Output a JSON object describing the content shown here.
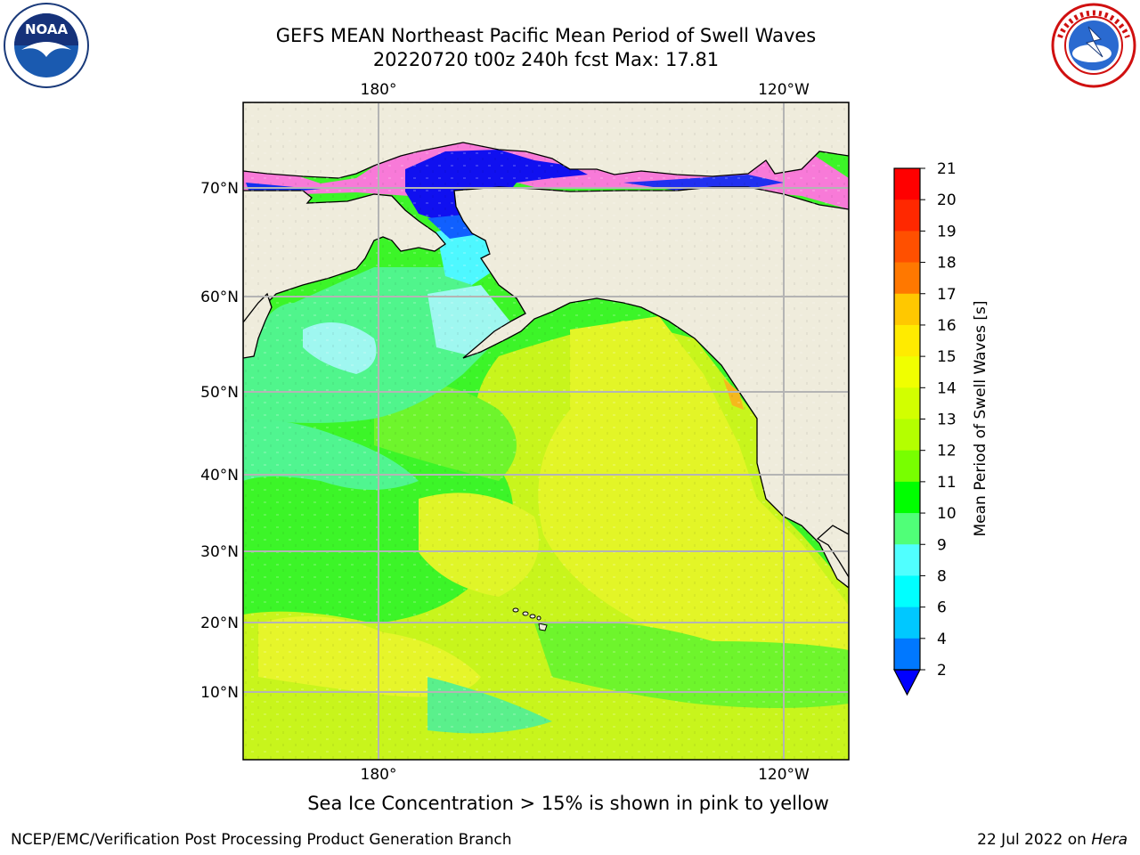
{
  "title_line1": "GEFS MEAN Northeast Pacific Mean Period of Swell Waves",
  "title_line2": "20220720 t00z 240h fcst   Max: 17.81",
  "map": {
    "lon_ticks_top": [
      "180°",
      "120°W"
    ],
    "lon_ticks_bottom": [
      "180°",
      "120°W"
    ],
    "lat_ticks": [
      "70°N",
      "60°N",
      "50°N",
      "40°N",
      "30°N",
      "20°N",
      "10°N"
    ],
    "colors": {
      "land": "#efecdc",
      "grid": "#b4b4b4",
      "coast": "#000000"
    }
  },
  "colorbar": {
    "label": "Mean Period of Swell Waves [s]",
    "ticks": [
      "21",
      "20",
      "19",
      "18",
      "17",
      "16",
      "15",
      "14",
      "13",
      "12",
      "11",
      "10",
      "9",
      "8",
      "6",
      "4",
      "2"
    ],
    "colors": [
      "#ff0000",
      "#ff2800",
      "#ff5000",
      "#ff7800",
      "#ffa000",
      "#ffc800",
      "#ffeb00",
      "#f0ff00",
      "#d2ff00",
      "#b4ff00",
      "#78ff00",
      "#00ff00",
      "#50ff78",
      "#a0ffff",
      "#50ffff",
      "#00ffff",
      "#00c8ff",
      "#0078ff",
      "#0000ff"
    ]
  },
  "sea_ice_note": "Sea Ice Concentration > 15% is shown in pink to yellow",
  "credit": "NCEP/EMC/Verification Post Processing Product Generation Branch",
  "date_text": "22 Jul 2022 on",
  "date_host": "Hera"
}
